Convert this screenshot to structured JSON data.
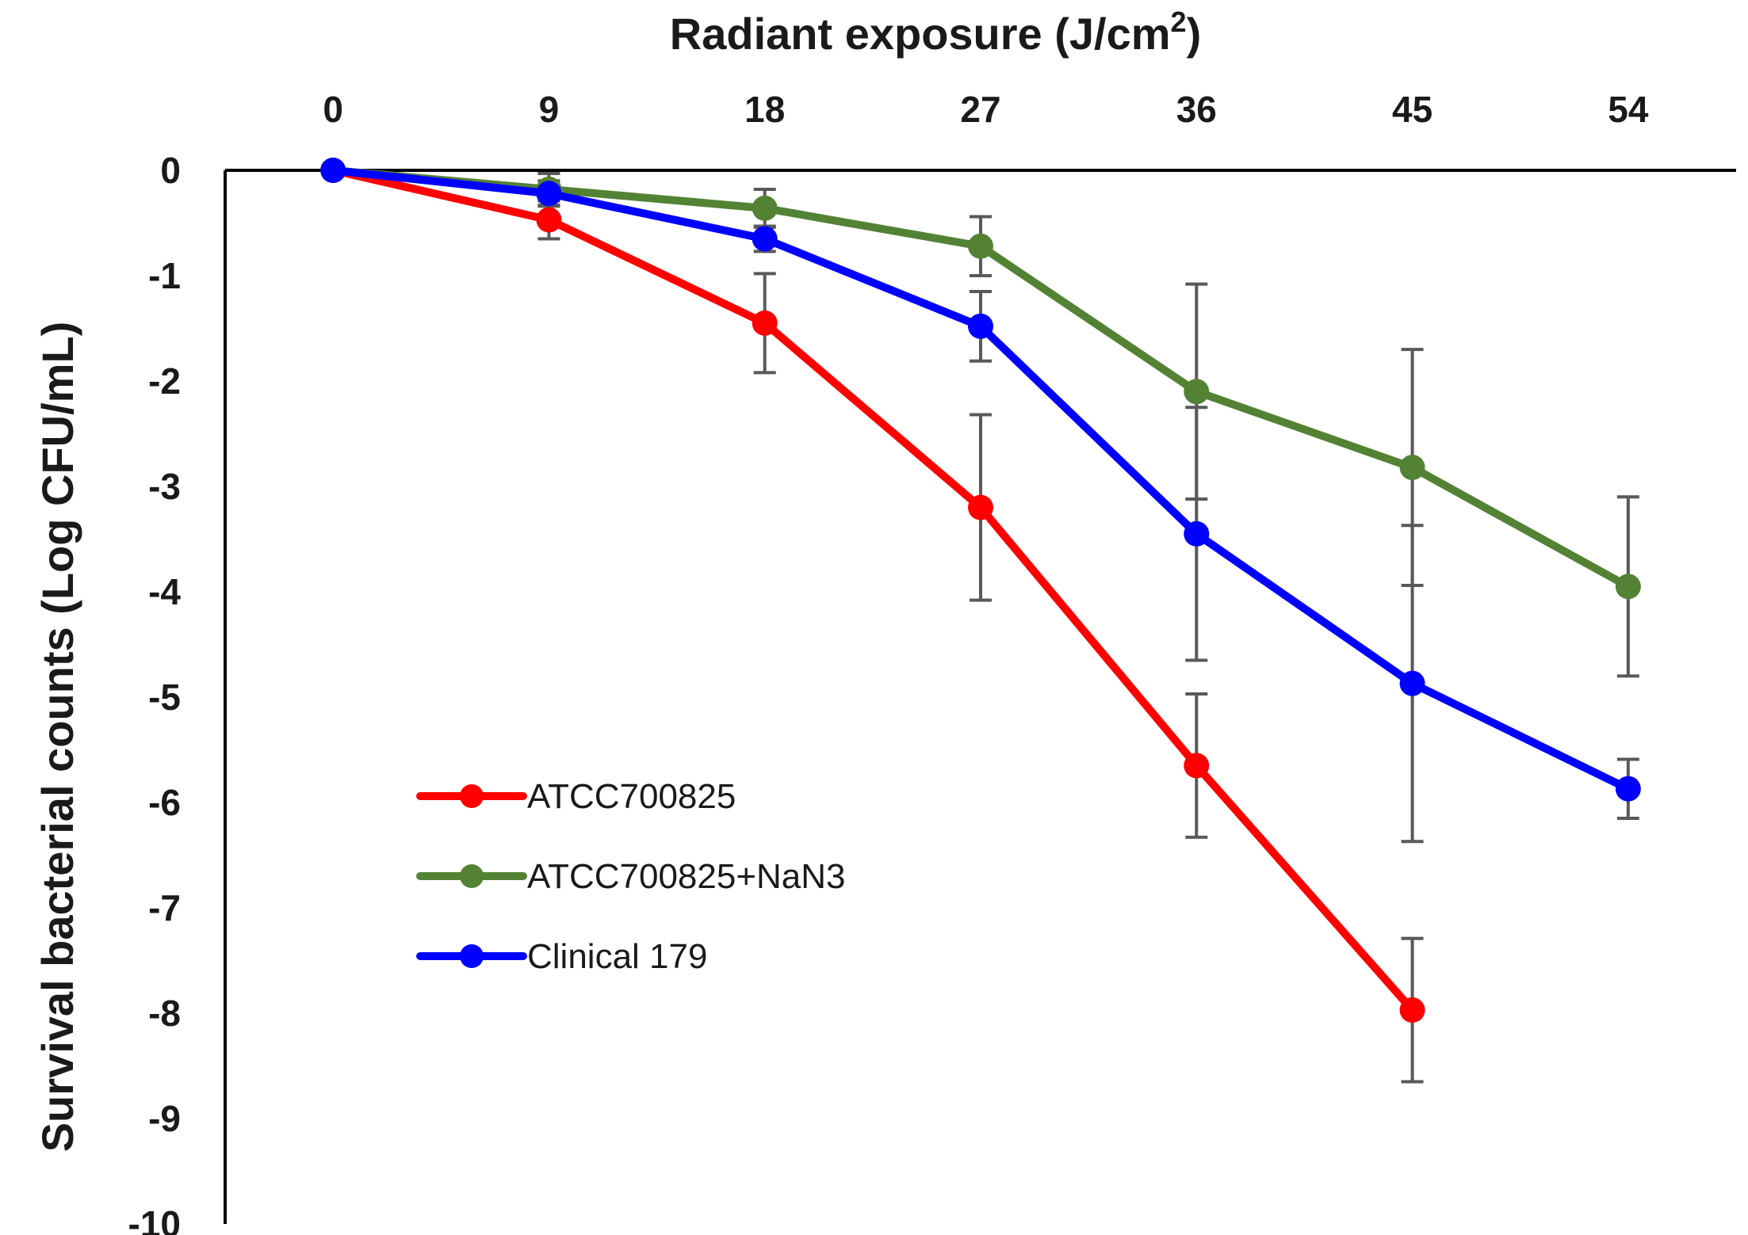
{
  "chart_data": {
    "type": "line",
    "title": "",
    "xlabel": "Radiant exposure (J/cm",
    "xlabel_sup": "2",
    "xlabel_close": ")",
    "ylabel": "Survival bacterial counts (Log CFU/mL)",
    "x": [
      0,
      9,
      18,
      27,
      36,
      45,
      54
    ],
    "x_tick_labels": [
      "0",
      "9",
      "18",
      "27",
      "36",
      "45",
      "54"
    ],
    "xlim": [
      -4.5,
      58.5
    ],
    "x_axis_position": "top",
    "y_ticks": [
      0,
      -1,
      -2,
      -3,
      -4,
      -5,
      -6,
      -7,
      -8,
      -9,
      -10
    ],
    "y_tick_labels": [
      "0",
      "-1",
      "-2",
      "-3",
      "-4",
      "-5",
      "-6",
      "-7",
      "-8",
      "-9",
      "-10"
    ],
    "ylim": [
      -10,
      0
    ],
    "grid": false,
    "legend_position": "lower-left",
    "series": [
      {
        "name": "ATCC700825",
        "color": "#ff0000",
        "values": [
          0,
          -0.47,
          -1.45,
          -3.2,
          -5.65,
          -7.97,
          null
        ],
        "errors": [
          0,
          0.18,
          0.47,
          0.88,
          0.68,
          0.68,
          null
        ]
      },
      {
        "name": "ATCC700825+NaN3",
        "color": "#548235",
        "values": [
          0,
          -0.18,
          -0.36,
          -0.72,
          -2.1,
          -2.82,
          -3.95
        ],
        "errors": [
          0,
          0.15,
          0.18,
          0.28,
          1.02,
          1.12,
          0.85
        ]
      },
      {
        "name": "Clinical 179",
        "color": "#0000ff",
        "values": [
          0,
          -0.22,
          -0.65,
          -1.48,
          -3.45,
          -4.87,
          -5.87
        ],
        "errors": [
          0,
          0.12,
          0.12,
          0.33,
          1.2,
          1.5,
          0.28
        ]
      }
    ],
    "error_bar_color": "#595959"
  }
}
